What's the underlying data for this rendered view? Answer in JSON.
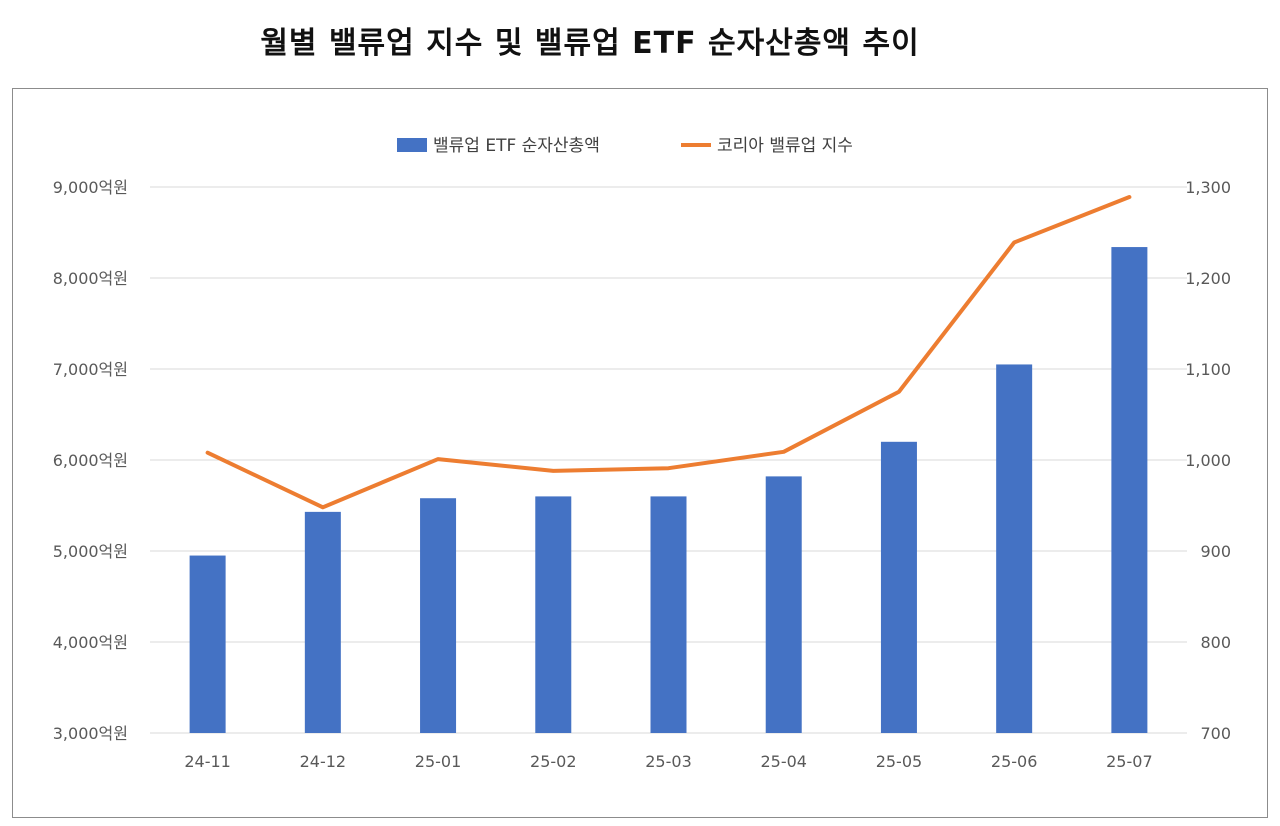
{
  "page": {
    "title": "월별 밸류업 지수 및 밸류업 ETF 순자산총액 추이"
  },
  "chart_data": {
    "type": "bar",
    "combo": "bar + line, dual y-axis",
    "categories": [
      "24-11",
      "24-12",
      "25-01",
      "25-02",
      "25-03",
      "25-04",
      "25-05",
      "25-06",
      "25-07"
    ],
    "series": [
      {
        "name": "밸류업 ETF 순자산총액",
        "type": "bar",
        "axis": "left",
        "color": "#4472C4",
        "values": [
          4950,
          5430,
          5580,
          5600,
          5600,
          5820,
          6200,
          7050,
          8340
        ]
      },
      {
        "name": "코리아 밸류업 지수",
        "type": "line",
        "axis": "right",
        "color": "#ED7D31",
        "values": [
          1008,
          948,
          1001,
          988,
          991,
          1009,
          1075,
          1239,
          1289
        ]
      }
    ],
    "y_left": {
      "ylim": [
        3000,
        9000
      ],
      "ticks": [
        3000,
        4000,
        5000,
        6000,
        7000,
        8000,
        9000
      ],
      "tick_labels": [
        "3,000억원",
        "4,000억원",
        "5,000억원",
        "6,000억원",
        "7,000억원",
        "8,000억원",
        "9,000억원"
      ]
    },
    "y_right": {
      "ylim": [
        700,
        1300
      ],
      "ticks": [
        700,
        800,
        900,
        1000,
        1100,
        1200,
        1300
      ],
      "tick_labels": [
        "700",
        "800",
        "900",
        "1,000",
        "1,100",
        "1,200",
        "1,300"
      ]
    },
    "legend_position": "top-center",
    "grid": true,
    "gridline_color": "#d9d9d9"
  }
}
